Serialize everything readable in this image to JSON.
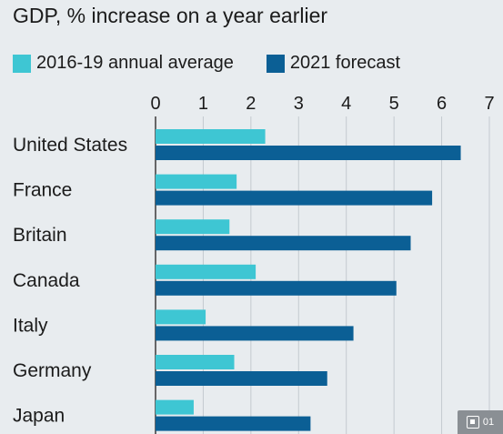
{
  "chart_data": {
    "type": "bar",
    "orientation": "horizontal",
    "title": "GDP, % increase on a year earlier",
    "categories": [
      "United States",
      "France",
      "Britain",
      "Canada",
      "Italy",
      "Germany",
      "Japan"
    ],
    "series": [
      {
        "name": "2016-19 annual average",
        "color": "#3ec6d3",
        "values": [
          2.3,
          1.7,
          1.55,
          2.1,
          1.05,
          1.65,
          0.8
        ]
      },
      {
        "name": "2021 forecast",
        "color": "#0b5f95",
        "values": [
          6.4,
          5.8,
          5.35,
          5.05,
          4.15,
          3.6,
          3.25
        ]
      }
    ],
    "xticks": [
      "0",
      "1",
      "2",
      "3",
      "4",
      "5",
      "6",
      "7"
    ],
    "xlim": [
      0,
      7
    ],
    "grid": true,
    "legend_position": "top-left"
  },
  "badge": {
    "label": "01",
    "icon": "image-gallery-icon"
  }
}
